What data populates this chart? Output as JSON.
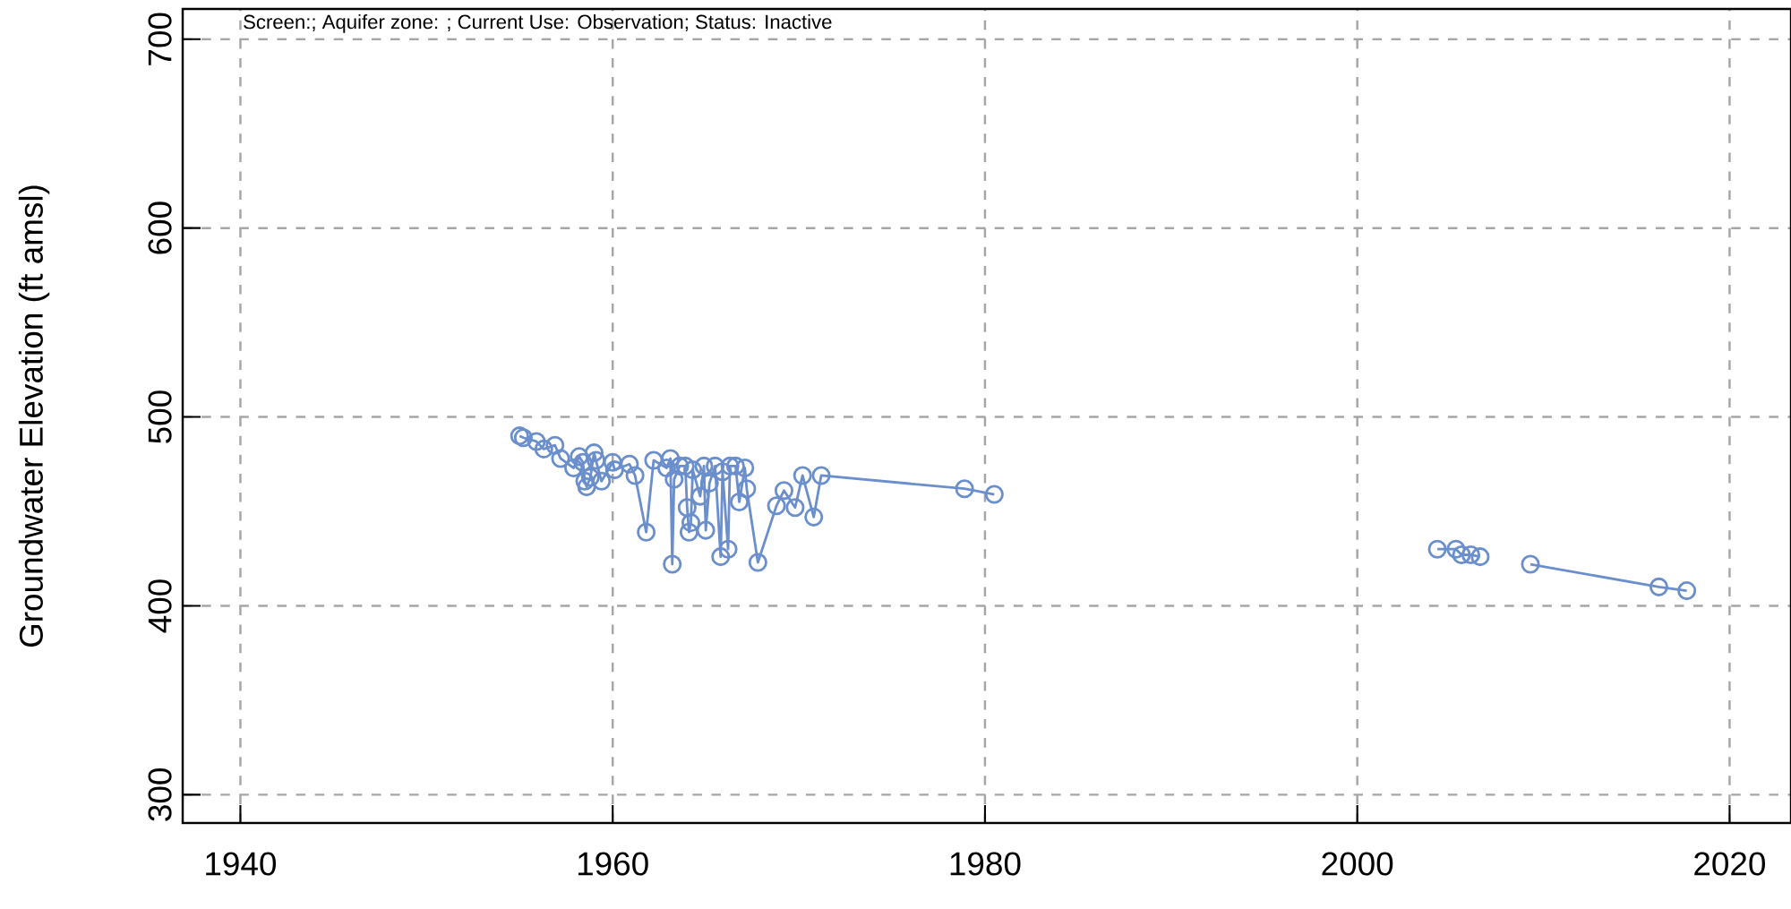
{
  "chart_data": {
    "type": "line",
    "ylabel": "Groundwater Elevation (ft amsl)",
    "annotations": [
      "Screen:; Aquifer zone: ; Current Use: Observation; Status: Inactive"
    ],
    "x": [
      1955.0,
      1955.2,
      1955.9,
      1956.3,
      1956.9,
      1957.2,
      1957.9,
      1958.2,
      1958.4,
      1958.5,
      1958.6,
      1958.8,
      1959.0,
      1959.1,
      1959.4,
      1960.0,
      1960.1,
      1960.9,
      1961.2,
      1961.8,
      1962.2,
      1962.9,
      1963.1,
      1963.2,
      1963.3,
      1963.6,
      1963.9,
      1964.0,
      1964.1,
      1964.2,
      1964.3,
      1964.7,
      1964.9,
      1965.0,
      1965.2,
      1965.5,
      1965.8,
      1965.9,
      1966.2,
      1966.3,
      1966.6,
      1966.8,
      1967.1,
      1967.2,
      1967.8,
      1968.8,
      1969.2,
      1969.8,
      1970.2,
      1970.8,
      1971.2,
      1978.9,
      1980.5,
      1992.0,
      2004.3,
      2005.3,
      2005.6,
      2006.1,
      2006.6,
      2008.0,
      2009.3,
      2016.2,
      2017.7
    ],
    "series": [
      {
        "color": "#6a8fcc",
        "values": [
          490,
          489,
          487,
          483,
          485,
          478,
          473,
          479,
          476,
          466,
          463,
          468,
          481,
          477,
          466,
          476,
          472,
          475,
          469,
          439,
          477,
          473,
          478,
          422,
          467,
          474,
          474,
          452,
          439,
          444,
          472,
          458,
          474,
          440,
          465,
          474,
          426,
          471,
          430,
          474,
          474,
          455,
          473,
          462,
          423,
          453,
          461,
          452,
          469,
          447,
          469,
          462,
          459,
          null,
          430,
          430,
          427,
          427,
          426,
          null,
          422,
          410,
          408
        ]
      }
    ],
    "xlim": [
      1936.9,
      2023.3
    ],
    "ylim": [
      285,
      716
    ],
    "xticks": [
      1940,
      1960,
      1980,
      2000,
      2020
    ],
    "yticks": [
      300,
      400,
      500,
      600,
      700
    ],
    "grid": true,
    "marker": "circle",
    "line_style": "solid"
  }
}
